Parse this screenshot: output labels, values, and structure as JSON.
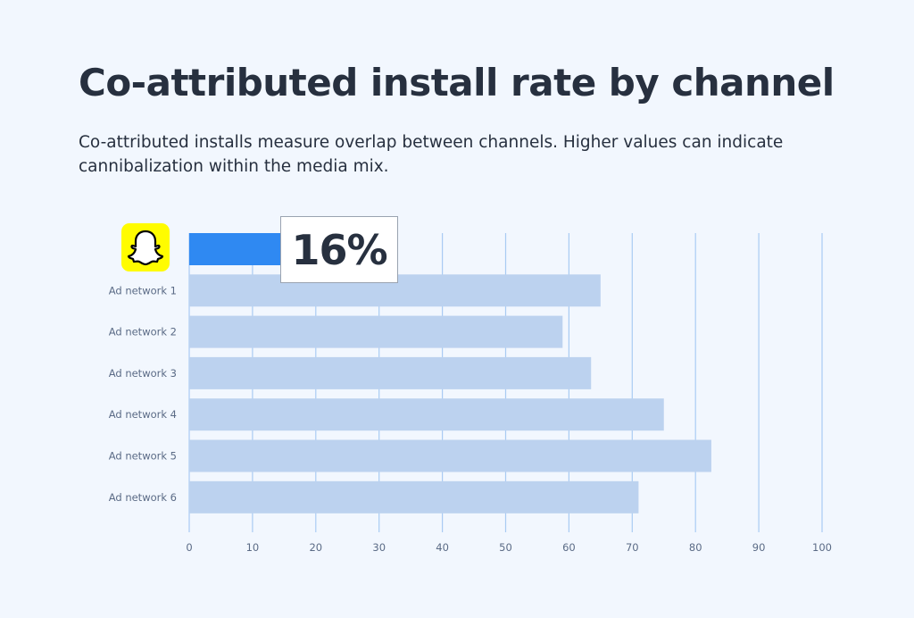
{
  "title": "Co-attributed install rate by channel",
  "subtitle": "Co-attributed installs measure overlap between channels. Higher values can indicate cannibalization within the media mix.",
  "colors": {
    "highlight": "#2f89f2",
    "bar": "#bcd2ef",
    "grid": "#a9cbf3",
    "background": "#f2f7fe"
  },
  "chart_data": {
    "type": "bar",
    "orientation": "horizontal",
    "title": "Co-attributed install rate by channel",
    "xlabel": "",
    "ylabel": "",
    "xlim": [
      0,
      100
    ],
    "xticks": [
      0,
      10,
      20,
      30,
      40,
      50,
      60,
      70,
      80,
      90,
      100
    ],
    "grid": true,
    "categories": [
      "Snapchat",
      "Ad network 1",
      "Ad network 2",
      "Ad network 3",
      "Ad network 4",
      "Ad network 5",
      "Ad network 6"
    ],
    "values": [
      16,
      65,
      59,
      63.5,
      75,
      82.5,
      71
    ],
    "highlight_label": "16%",
    "highlight_icon": "snapchat-ghost-icon"
  }
}
